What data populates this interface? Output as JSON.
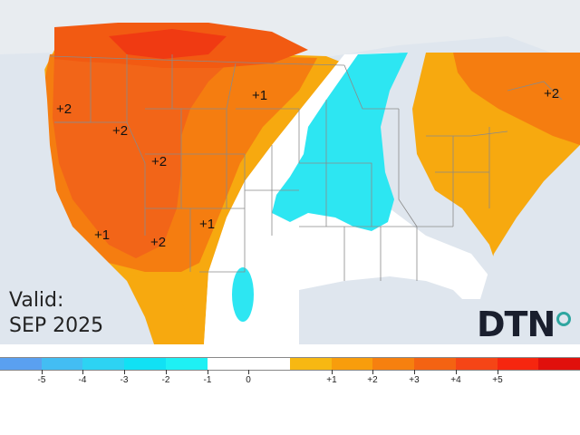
{
  "valid_label": "Valid:",
  "period": "SEP 2025",
  "logo": {
    "text": "DTN",
    "accent_color": "#2fa6a0"
  },
  "anomaly_labels": [
    "+2",
    "+2",
    "+2",
    "+1",
    "+1",
    "+1",
    "+2",
    "+2"
  ],
  "legend": {
    "colors": [
      "#5aa0f0",
      "#43bdf3",
      "#2dd3f3",
      "#11e1f4",
      "#1ef0f4",
      "#ffffff",
      "#ffffff",
      "#f7b812",
      "#f89d0c",
      "#f6800f",
      "#f46312",
      "#f54516",
      "#f6260f",
      "#e0100c"
    ],
    "tick_labels": [
      "-5",
      "-4",
      "-3",
      "-2",
      "-1",
      "0",
      "+1",
      "+2",
      "+3",
      "+4",
      "+5"
    ]
  },
  "colors": {
    "water": "#dfe6ee",
    "neutral": "#ffffff",
    "warm_1": "#f7a90f",
    "warm_2": "#f57d10",
    "warm_3": "#f25a12",
    "warm_4": "#f03a12",
    "cool_1": "#2de6f2",
    "border": "#8a8a8a"
  }
}
